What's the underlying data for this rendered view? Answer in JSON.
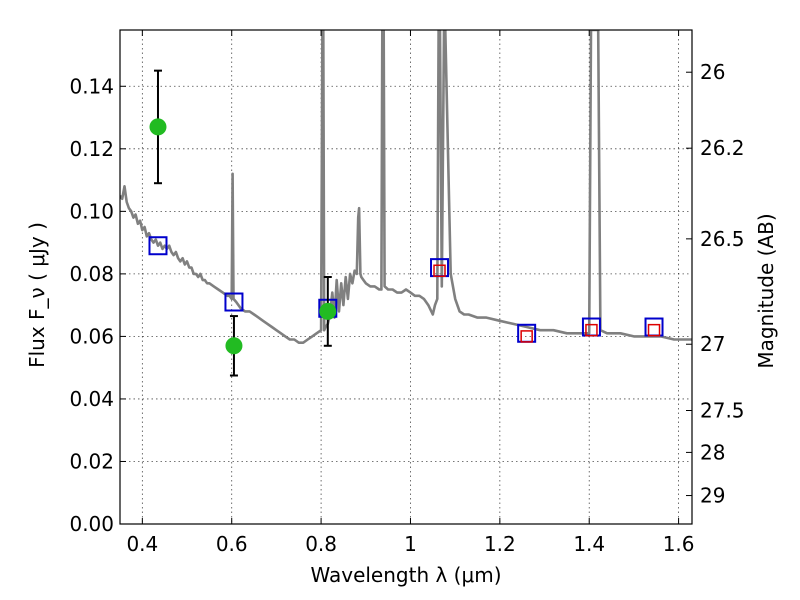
{
  "chart_data": {
    "type": "scatter",
    "xlabel": "Wavelength  λ (μm)",
    "ylabel": "Flux  F_ν  ( μJy )",
    "ylabel_right": "Magnitude (AB)",
    "xlim": [
      0.35,
      1.63
    ],
    "ylim": [
      0.0,
      0.158
    ],
    "grid": true,
    "x_ticks": [
      0.4,
      0.6,
      0.8,
      1.0,
      1.2,
      1.4,
      1.6
    ],
    "x_tick_labels": [
      "0.4",
      "0.6",
      "0.8",
      "1",
      "1.2",
      "1.4",
      "1.6"
    ],
    "y_ticks": [
      0.0,
      0.02,
      0.04,
      0.06,
      0.08,
      0.1,
      0.12,
      0.14
    ],
    "y_tick_labels": [
      "0.00",
      "0.02",
      "0.04",
      "0.06",
      "0.08",
      "0.10",
      "0.12",
      "0.14"
    ],
    "right_ticks": [
      {
        "label": "26",
        "flux": 0.1445
      },
      {
        "label": "26.2",
        "flux": 0.1202
      },
      {
        "label": "26.5",
        "flux": 0.0912
      },
      {
        "label": "27",
        "flux": 0.0575
      },
      {
        "label": "27.5",
        "flux": 0.0363
      },
      {
        "label": "28",
        "flux": 0.0229
      },
      {
        "label": "29",
        "flux": 0.0091
      }
    ],
    "series": [
      {
        "type": "line",
        "color": "#808080",
        "points": [
          [
            0.35,
            0.105
          ],
          [
            0.355,
            0.104
          ],
          [
            0.36,
            0.108
          ],
          [
            0.365,
            0.103
          ],
          [
            0.37,
            0.101
          ],
          [
            0.375,
            0.1
          ],
          [
            0.38,
            0.098
          ],
          [
            0.385,
            0.099
          ],
          [
            0.39,
            0.096
          ],
          [
            0.395,
            0.097
          ],
          [
            0.4,
            0.094
          ],
          [
            0.405,
            0.095
          ],
          [
            0.41,
            0.092
          ],
          [
            0.415,
            0.093
          ],
          [
            0.42,
            0.091
          ],
          [
            0.425,
            0.09
          ],
          [
            0.43,
            0.091
          ],
          [
            0.435,
            0.089
          ],
          [
            0.44,
            0.09
          ],
          [
            0.445,
            0.088
          ],
          [
            0.45,
            0.089
          ],
          [
            0.455,
            0.088
          ],
          [
            0.46,
            0.089
          ],
          [
            0.465,
            0.087
          ],
          [
            0.47,
            0.086
          ],
          [
            0.475,
            0.087
          ],
          [
            0.48,
            0.085
          ],
          [
            0.485,
            0.084
          ],
          [
            0.49,
            0.085
          ],
          [
            0.495,
            0.083
          ],
          [
            0.5,
            0.084
          ],
          [
            0.505,
            0.082
          ],
          [
            0.51,
            0.082
          ],
          [
            0.515,
            0.08
          ],
          [
            0.52,
            0.08
          ],
          [
            0.525,
            0.079
          ],
          [
            0.53,
            0.08
          ],
          [
            0.535,
            0.078
          ],
          [
            0.54,
            0.078
          ],
          [
            0.545,
            0.077
          ],
          [
            0.55,
            0.077
          ],
          [
            0.56,
            0.076
          ],
          [
            0.57,
            0.075
          ],
          [
            0.58,
            0.074
          ],
          [
            0.59,
            0.073
          ],
          [
            0.595,
            0.073
          ],
          [
            0.6,
            0.072
          ],
          [
            0.602,
            0.112
          ],
          [
            0.604,
            0.072
          ],
          [
            0.61,
            0.071
          ],
          [
            0.62,
            0.069
          ],
          [
            0.63,
            0.068
          ],
          [
            0.64,
            0.068
          ],
          [
            0.65,
            0.067
          ],
          [
            0.66,
            0.066
          ],
          [
            0.67,
            0.065
          ],
          [
            0.68,
            0.064
          ],
          [
            0.69,
            0.063
          ],
          [
            0.7,
            0.062
          ],
          [
            0.71,
            0.061
          ],
          [
            0.72,
            0.06
          ],
          [
            0.73,
            0.059
          ],
          [
            0.74,
            0.059
          ],
          [
            0.75,
            0.058
          ],
          [
            0.76,
            0.058
          ],
          [
            0.77,
            0.059
          ],
          [
            0.78,
            0.06
          ],
          [
            0.79,
            0.061
          ],
          [
            0.8,
            0.062
          ],
          [
            0.803,
            0.158
          ],
          [
            0.805,
            0.158
          ],
          [
            0.807,
            0.062
          ],
          [
            0.81,
            0.063
          ],
          [
            0.815,
            0.064
          ],
          [
            0.82,
            0.067
          ],
          [
            0.825,
            0.074
          ],
          [
            0.83,
            0.066
          ],
          [
            0.835,
            0.078
          ],
          [
            0.84,
            0.068
          ],
          [
            0.845,
            0.077
          ],
          [
            0.85,
            0.07
          ],
          [
            0.855,
            0.079
          ],
          [
            0.86,
            0.072
          ],
          [
            0.865,
            0.08
          ],
          [
            0.87,
            0.077
          ],
          [
            0.875,
            0.081
          ],
          [
            0.88,
            0.08
          ],
          [
            0.883,
            0.098
          ],
          [
            0.885,
            0.101
          ],
          [
            0.888,
            0.08
          ],
          [
            0.89,
            0.079
          ],
          [
            0.895,
            0.078
          ],
          [
            0.9,
            0.077
          ],
          [
            0.91,
            0.076
          ],
          [
            0.92,
            0.076
          ],
          [
            0.93,
            0.075
          ],
          [
            0.935,
            0.075
          ],
          [
            0.937,
            0.158
          ],
          [
            0.94,
            0.158
          ],
          [
            0.942,
            0.076
          ],
          [
            0.95,
            0.075
          ],
          [
            0.96,
            0.075
          ],
          [
            0.97,
            0.074
          ],
          [
            0.98,
            0.074
          ],
          [
            0.99,
            0.075
          ],
          [
            1.0,
            0.074
          ],
          [
            1.01,
            0.073
          ],
          [
            1.02,
            0.073
          ],
          [
            1.03,
            0.072
          ],
          [
            1.04,
            0.07
          ],
          [
            1.05,
            0.067
          ],
          [
            1.055,
            0.07
          ],
          [
            1.06,
            0.072
          ],
          [
            1.063,
            0.158
          ],
          [
            1.066,
            0.158
          ],
          [
            1.07,
            0.076
          ],
          [
            1.075,
            0.158
          ],
          [
            1.078,
            0.158
          ],
          [
            1.09,
            0.08
          ],
          [
            1.1,
            0.072
          ],
          [
            1.11,
            0.068
          ],
          [
            1.12,
            0.067
          ],
          [
            1.13,
            0.067
          ],
          [
            1.15,
            0.066
          ],
          [
            1.17,
            0.066
          ],
          [
            1.2,
            0.065
          ],
          [
            1.23,
            0.064
          ],
          [
            1.26,
            0.063
          ],
          [
            1.29,
            0.062
          ],
          [
            1.32,
            0.062
          ],
          [
            1.35,
            0.061
          ],
          [
            1.38,
            0.061
          ],
          [
            1.4,
            0.061
          ],
          [
            1.404,
            0.158
          ],
          [
            1.407,
            0.158
          ],
          [
            1.415,
            0.158
          ],
          [
            1.42,
            0.158
          ],
          [
            1.425,
            0.062
          ],
          [
            1.44,
            0.061
          ],
          [
            1.47,
            0.061
          ],
          [
            1.5,
            0.06
          ],
          [
            1.53,
            0.06
          ],
          [
            1.56,
            0.06
          ],
          [
            1.59,
            0.059
          ],
          [
            1.62,
            0.059
          ],
          [
            1.63,
            0.059
          ]
        ]
      },
      {
        "type": "square-markers",
        "color": "#0000cc",
        "points": [
          {
            "x": 0.435,
            "y": 0.089
          },
          {
            "x": 0.605,
            "y": 0.071
          },
          {
            "x": 0.815,
            "y": 0.069
          },
          {
            "x": 1.065,
            "y": 0.082
          },
          {
            "x": 1.26,
            "y": 0.061
          },
          {
            "x": 1.405,
            "y": 0.063
          },
          {
            "x": 1.545,
            "y": 0.063
          }
        ]
      },
      {
        "type": "small-square-markers",
        "color": "#dd0000",
        "points": [
          {
            "x": 1.065,
            "y": 0.081
          },
          {
            "x": 1.26,
            "y": 0.06
          },
          {
            "x": 1.405,
            "y": 0.062
          },
          {
            "x": 1.545,
            "y": 0.062
          }
        ]
      },
      {
        "type": "circle-markers-with-errors",
        "color": "#22bb22",
        "points": [
          {
            "x": 0.435,
            "y": 0.127,
            "err": 0.018
          },
          {
            "x": 0.605,
            "y": 0.057,
            "err": 0.0095
          },
          {
            "x": 0.815,
            "y": 0.068,
            "err": 0.011
          }
        ]
      }
    ]
  }
}
